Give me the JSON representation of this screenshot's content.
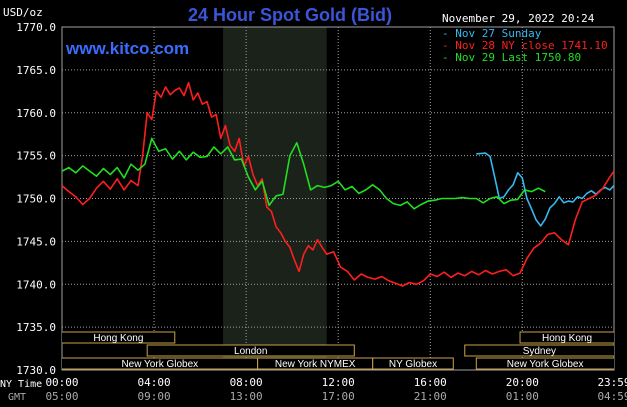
{
  "title": "24 Hour Spot Gold (Bid)",
  "unit_label": "USD/oz",
  "website": "www.kitco.com",
  "timestamp": "November 29, 2022 20:24",
  "row_labels": {
    "ny": "NY Time",
    "gmt": "GMT"
  },
  "colors": {
    "background": "#000000",
    "title": "#3a56d8",
    "website": "#3a6cff",
    "grid": "#a0a0a0",
    "highlight": "#1b2219",
    "text": "#ffffff",
    "band": "#c8a44a"
  },
  "chart_data": {
    "type": "line",
    "ylim": [
      1730,
      1770
    ],
    "xlim": [
      0,
      23.983
    ],
    "y_ticks": [
      "1730.0",
      "1735.0",
      "1740.0",
      "1745.0",
      "1750.0",
      "1755.0",
      "1760.0",
      "1765.0",
      "1770.0"
    ],
    "y_tick_values": [
      1730,
      1735,
      1740,
      1745,
      1750,
      1755,
      1760,
      1765,
      1770
    ],
    "x_ticks_ny": [
      "00:00",
      "04:00",
      "08:00",
      "12:00",
      "16:00",
      "20:00",
      "23:59"
    ],
    "x_ticks_gmt": [
      "05:00",
      "09:00",
      "13:00",
      "17:00",
      "21:00",
      "01:00",
      "04:59"
    ],
    "x_tick_values": [
      0,
      4,
      8,
      12,
      16,
      20,
      23.983
    ],
    "highlight_range": [
      7.0,
      11.5
    ],
    "legend": [
      {
        "label": "Nov 27 Sunday",
        "color": "#36b8f0"
      },
      {
        "label": "Nov 28 NY close 1741.10",
        "color": "#ff1e1e"
      },
      {
        "label": "Nov 29 Last 1750.80",
        "color": "#22dd22"
      }
    ],
    "series": [
      {
        "name": "Nov 27 Sunday",
        "color": "#36b8f0",
        "x": [
          18.0,
          18.4,
          18.6,
          18.8,
          19.0,
          19.2,
          19.4,
          19.6,
          19.8,
          20.0,
          20.2,
          20.4,
          20.6,
          20.8,
          21.0,
          21.2,
          21.4,
          21.6,
          21.8,
          22.0,
          22.2,
          22.4,
          22.6,
          22.8,
          23.0,
          23.2,
          23.4,
          23.6,
          23.8,
          23.983
        ],
        "y": [
          1755.2,
          1755.3,
          1754.9,
          1752.5,
          1750.0,
          1750.2,
          1751.0,
          1751.6,
          1753.0,
          1752.4,
          1750.0,
          1748.8,
          1747.5,
          1746.8,
          1747.6,
          1748.9,
          1749.4,
          1750.2,
          1749.5,
          1749.7,
          1749.6,
          1750.2,
          1750.0,
          1750.6,
          1750.9,
          1750.5,
          1751.0,
          1751.3,
          1751.0,
          1751.5
        ]
      },
      {
        "name": "Nov 28 NY close 1741.10",
        "color": "#ff1e1e",
        "x": [
          0.0,
          0.3,
          0.6,
          0.9,
          1.2,
          1.5,
          1.8,
          2.1,
          2.4,
          2.7,
          3.0,
          3.3,
          3.5,
          3.7,
          3.9,
          4.1,
          4.3,
          4.5,
          4.7,
          4.9,
          5.1,
          5.3,
          5.5,
          5.7,
          5.9,
          6.1,
          6.3,
          6.5,
          6.7,
          6.9,
          7.1,
          7.3,
          7.5,
          7.7,
          7.9,
          8.1,
          8.3,
          8.5,
          8.7,
          8.9,
          9.1,
          9.3,
          9.5,
          9.7,
          9.9,
          10.1,
          10.3,
          10.5,
          10.7,
          10.9,
          11.1,
          11.3,
          11.5,
          11.8,
          12.1,
          12.4,
          12.7,
          13.0,
          13.3,
          13.6,
          13.9,
          14.2,
          14.5,
          14.8,
          15.1,
          15.4,
          15.7,
          16.0,
          16.3,
          16.6,
          16.9,
          17.2,
          17.5,
          17.8,
          18.1,
          18.4,
          18.7,
          19.0,
          19.3,
          19.6,
          19.9,
          20.2,
          20.5,
          20.8,
          21.1,
          21.4,
          21.7,
          22.0,
          22.3,
          22.6,
          22.9,
          23.2,
          23.5,
          23.8,
          23.983
        ],
        "y": [
          1751.5,
          1750.8,
          1750.2,
          1749.3,
          1750.0,
          1751.2,
          1752.0,
          1751.1,
          1752.3,
          1751.0,
          1752.1,
          1751.5,
          1755.0,
          1760.0,
          1759.2,
          1762.5,
          1761.8,
          1763.0,
          1762.1,
          1762.6,
          1762.9,
          1762.0,
          1763.5,
          1761.5,
          1762.3,
          1761.0,
          1761.3,
          1759.5,
          1759.8,
          1757.0,
          1758.5,
          1756.2,
          1755.5,
          1757.0,
          1753.8,
          1754.9,
          1752.8,
          1751.5,
          1752.3,
          1749.0,
          1748.5,
          1746.7,
          1746.0,
          1745.0,
          1744.3,
          1742.8,
          1741.5,
          1743.5,
          1744.5,
          1744.0,
          1745.2,
          1744.3,
          1743.5,
          1743.8,
          1742.0,
          1741.5,
          1740.5,
          1741.2,
          1740.8,
          1740.6,
          1740.9,
          1740.4,
          1740.1,
          1739.8,
          1740.2,
          1740.0,
          1740.4,
          1741.2,
          1740.9,
          1741.4,
          1740.8,
          1741.3,
          1741.0,
          1741.5,
          1741.1,
          1741.6,
          1741.2,
          1741.5,
          1741.7,
          1741.0,
          1741.3,
          1743.0,
          1744.2,
          1744.8,
          1745.8,
          1746.0,
          1745.2,
          1744.6,
          1747.5,
          1749.6,
          1750.0,
          1750.4,
          1751.2,
          1752.5,
          1753.2
        ]
      },
      {
        "name": "Nov 29 Last 1750.80",
        "color": "#22dd22",
        "x": [
          0.0,
          0.3,
          0.6,
          0.9,
          1.2,
          1.5,
          1.8,
          2.1,
          2.4,
          2.7,
          3.0,
          3.3,
          3.6,
          3.9,
          4.2,
          4.5,
          4.8,
          5.1,
          5.4,
          5.7,
          6.0,
          6.3,
          6.6,
          6.9,
          7.2,
          7.5,
          7.8,
          8.1,
          8.4,
          8.7,
          9.0,
          9.3,
          9.6,
          9.9,
          10.2,
          10.5,
          10.8,
          11.1,
          11.4,
          11.7,
          12.0,
          12.3,
          12.6,
          12.9,
          13.2,
          13.5,
          13.8,
          14.1,
          14.4,
          14.7,
          15.0,
          15.3,
          15.6,
          15.9,
          16.2,
          16.5,
          16.8,
          17.1,
          17.4,
          17.7,
          18.0,
          18.3,
          18.6,
          18.9,
          19.2,
          19.5,
          19.8,
          20.1,
          20.4,
          20.7,
          21.0
        ],
        "y": [
          1753.2,
          1753.6,
          1753.0,
          1753.8,
          1753.2,
          1752.6,
          1753.5,
          1752.8,
          1753.6,
          1752.4,
          1754.0,
          1753.3,
          1754.0,
          1757.0,
          1755.5,
          1755.8,
          1754.6,
          1755.5,
          1754.5,
          1755.4,
          1754.8,
          1754.9,
          1756.0,
          1755.2,
          1756.0,
          1754.5,
          1754.6,
          1752.5,
          1751.0,
          1752.0,
          1749.2,
          1750.3,
          1750.5,
          1755.0,
          1756.5,
          1754.0,
          1751.0,
          1751.5,
          1751.3,
          1751.5,
          1752.0,
          1751.0,
          1751.4,
          1750.6,
          1751.0,
          1751.6,
          1751.0,
          1750.0,
          1749.4,
          1749.2,
          1749.6,
          1748.8,
          1749.3,
          1749.7,
          1749.8,
          1750.0,
          1750.0,
          1750.0,
          1750.1,
          1750.0,
          1750.0,
          1749.5,
          1750.0,
          1750.2,
          1749.4,
          1749.8,
          1749.9,
          1751.0,
          1750.8,
          1751.2,
          1750.8
        ]
      }
    ],
    "sessions": [
      {
        "label": "Hong Kong",
        "start": 0.0,
        "end": 4.9,
        "row": 0,
        "clipped": "left"
      },
      {
        "label": "London",
        "start": 3.7,
        "end": 12.7,
        "row": 1
      },
      {
        "label": "New York Globex",
        "start": 0.0,
        "end": 8.5,
        "row": 2,
        "clipped": "left"
      },
      {
        "label": "New York NYMEX",
        "start": 8.5,
        "end": 13.5,
        "row": 2
      },
      {
        "label": "NY Globex",
        "start": 13.5,
        "end": 17.0,
        "row": 2
      },
      {
        "label": "Hong Kong",
        "start": 19.9,
        "end": 23.983,
        "row": 0,
        "clipped": "right"
      },
      {
        "label": "Sydney",
        "start": 17.5,
        "end": 23.983,
        "row": 1,
        "clipped": "right"
      },
      {
        "label": "New York Globex",
        "start": 18.0,
        "end": 23.983,
        "row": 2,
        "clipped": "right"
      }
    ]
  }
}
